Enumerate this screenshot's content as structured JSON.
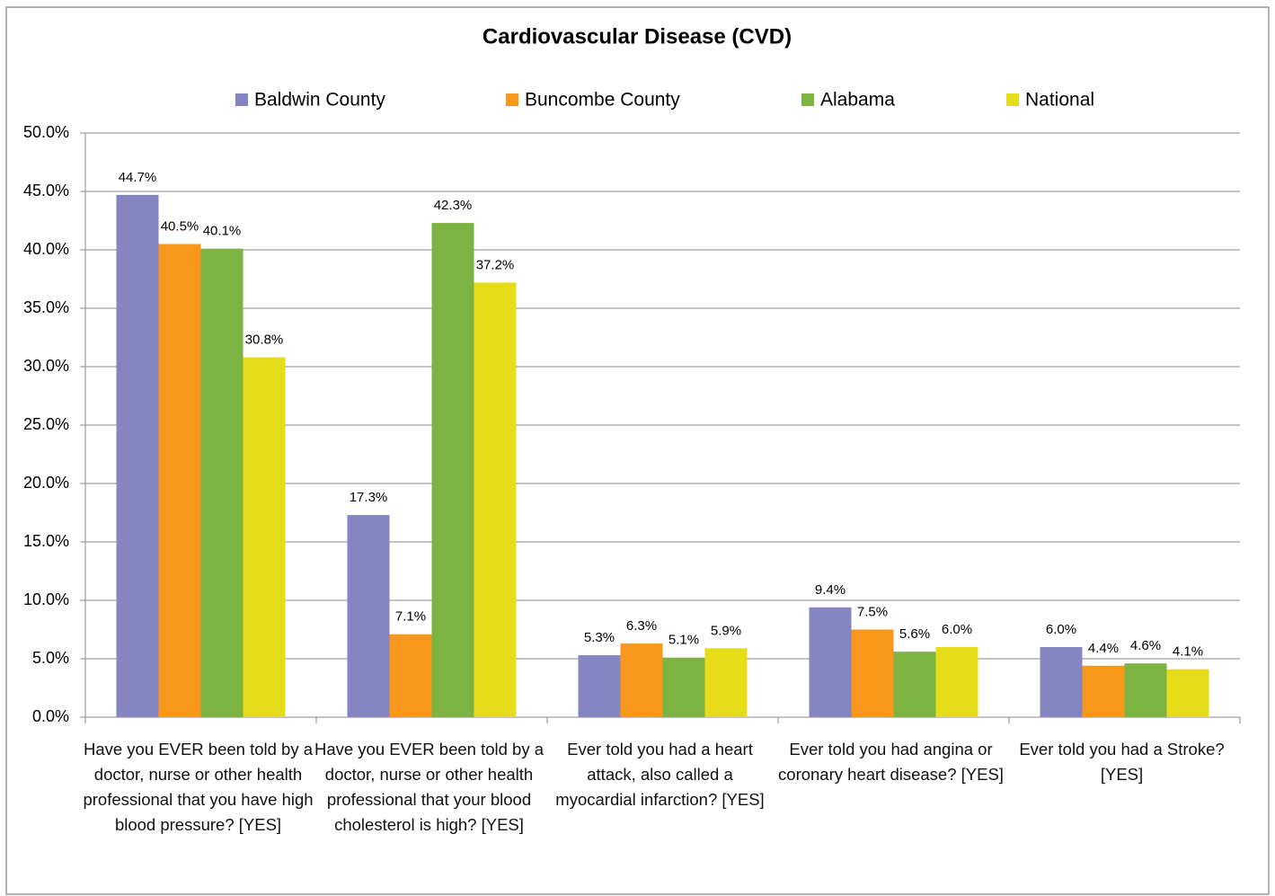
{
  "chart_data": {
    "type": "bar",
    "title": "Cardiovascular Disease (CVD)",
    "categories": [
      "Have you EVER been told by a doctor, nurse or other health professional that you have high blood pressure? [YES]",
      "Have you EVER been told by a doctor, nurse or other health professional that your blood cholesterol is high? [YES]",
      "Ever told you had a heart attack, also called a myocardial infarction? [YES]",
      "Ever told you had angina or coronary heart disease? [YES]",
      "Ever told you had a Stroke? [YES]"
    ],
    "series": [
      {
        "name": "Baldwin County",
        "color": "#8585c1",
        "values": [
          44.7,
          17.3,
          5.3,
          9.4,
          6.0
        ],
        "value_labels": [
          "44.7%",
          "17.3%",
          "5.3%",
          "9.4%",
          "6.0%"
        ]
      },
      {
        "name": "Buncombe County",
        "color": "#f7981d",
        "values": [
          40.5,
          7.1,
          6.3,
          7.5,
          4.4
        ],
        "value_labels": [
          "40.5%",
          "7.1%",
          "6.3%",
          "7.5%",
          "4.4%"
        ]
      },
      {
        "name": "Alabama",
        "color": "#7cb342",
        "values": [
          40.1,
          42.3,
          5.1,
          5.6,
          4.6
        ],
        "value_labels": [
          "40.1%",
          "42.3%",
          "5.1%",
          "5.6%",
          "4.6%"
        ]
      },
      {
        "name": "National",
        "color": "#e6dc17",
        "values": [
          30.8,
          37.2,
          5.9,
          6.0,
          4.1
        ],
        "value_labels": [
          "30.8%",
          "37.2%",
          "5.9%",
          "6.0%",
          "4.1%"
        ]
      }
    ],
    "ylim": [
      0,
      50
    ],
    "yticks": [
      {
        "value": 0,
        "label": "0.0%"
      },
      {
        "value": 5,
        "label": "5.0%"
      },
      {
        "value": 10,
        "label": "10.0%"
      },
      {
        "value": 15,
        "label": "15.0%"
      },
      {
        "value": 20,
        "label": "20.0%"
      },
      {
        "value": 25,
        "label": "25.0%"
      },
      {
        "value": 30,
        "label": "30.0%"
      },
      {
        "value": 35,
        "label": "35.0%"
      },
      {
        "value": 40,
        "label": "40.0%"
      },
      {
        "value": 45,
        "label": "45.0%"
      },
      {
        "value": 50,
        "label": "50.0%"
      }
    ],
    "grid": true,
    "legend": "top"
  }
}
